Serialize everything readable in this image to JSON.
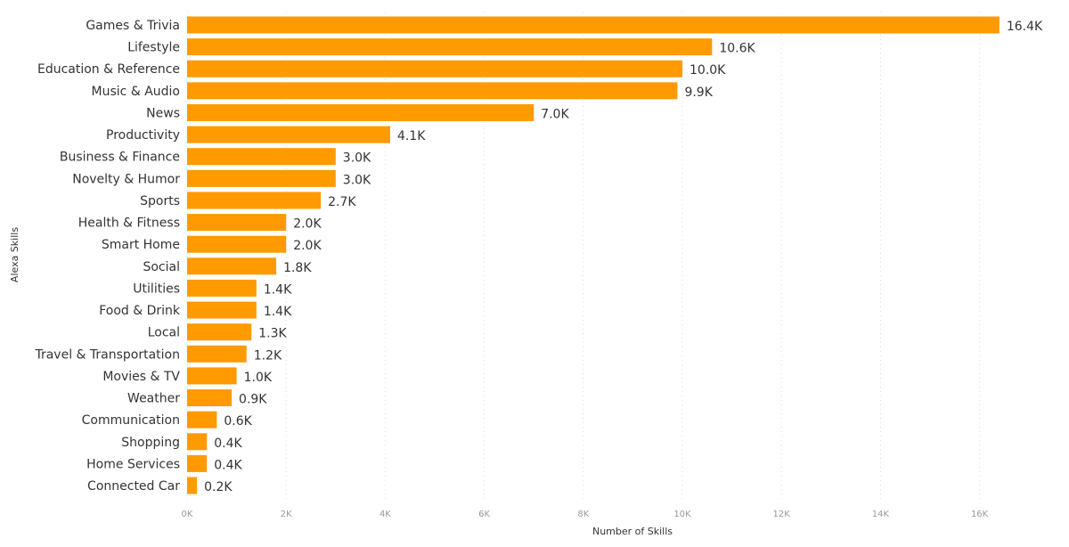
{
  "chart_data": {
    "type": "bar",
    "orientation": "horizontal",
    "xlabel": "Number of Skills",
    "ylabel": "Alexa Skills",
    "xlim": [
      0,
      17000
    ],
    "x_ticks": [
      "0K",
      "2K",
      "4K",
      "6K",
      "8K",
      "10K",
      "12K",
      "14K",
      "16K"
    ],
    "grid": "vertical dotted",
    "bar_color": "#FF9A00",
    "categories": [
      "Games & Trivia",
      "Lifestyle",
      "Education & Reference",
      "Music & Audio",
      "News",
      "Productivity",
      "Business & Finance",
      "Novelty & Humor",
      "Sports",
      "Health & Fitness",
      "Smart Home",
      "Social",
      "Utilities",
      "Food & Drink",
      "Local",
      "Travel & Transportation",
      "Movies & TV",
      "Weather",
      "Communication",
      "Shopping",
      "Home Services",
      "Connected Car"
    ],
    "values": [
      16400,
      10600,
      10000,
      9900,
      7000,
      4100,
      3000,
      3000,
      2700,
      2000,
      2000,
      1800,
      1400,
      1400,
      1300,
      1200,
      1000,
      900,
      600,
      400,
      400,
      200
    ],
    "data_labels": [
      "16.4K",
      "10.6K",
      "10.0K",
      "9.9K",
      "7.0K",
      "4.1K",
      "3.0K",
      "3.0K",
      "2.7K",
      "2.0K",
      "2.0K",
      "1.8K",
      "1.4K",
      "1.4K",
      "1.3K",
      "1.2K",
      "1.0K",
      "0.9K",
      "0.6K",
      "0.4K",
      "0.4K",
      "0.2K"
    ]
  }
}
